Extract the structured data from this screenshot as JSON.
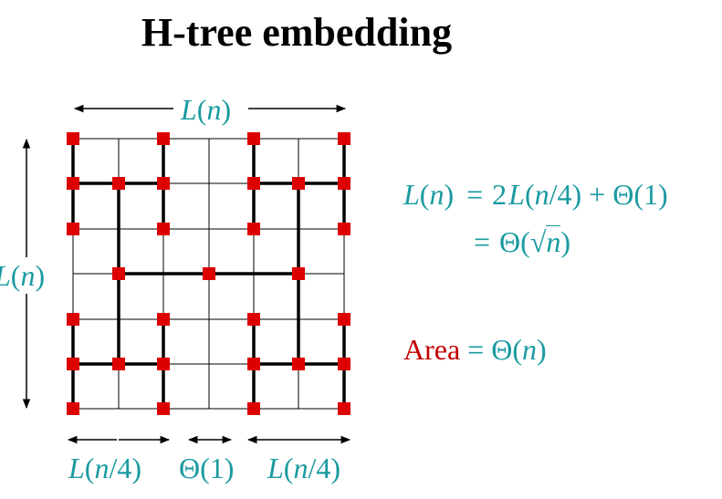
{
  "title": "H-tree embedding",
  "labels": {
    "top_width": [
      "L",
      "(",
      "n",
      ")"
    ],
    "left_height": [
      "L",
      "(",
      "n",
      ")"
    ],
    "bottom_left": [
      "L",
      "(",
      "n",
      "/4)"
    ],
    "bottom_mid": "Θ(1)",
    "bottom_right": [
      "L",
      "(",
      "n",
      "/4)"
    ]
  },
  "equations": {
    "line1": {
      "lhs_var": "L",
      "lhs_paren_open": "(",
      "lhs_arg": "n",
      "lhs_paren_close": ")",
      "eq": "=",
      "rhs_coef": "2",
      "rhs_var": "L",
      "rhs_arg_open": "(",
      "rhs_arg": "n",
      "rhs_arg_rest": "/4) + Θ(1)"
    },
    "line2": {
      "eq": "=",
      "prefix": "Θ(",
      "sqrt": "√",
      "arg": "n",
      "suffix": ")"
    },
    "area": {
      "label": "Area",
      "eq": "=",
      "prefix": "Θ(",
      "arg": "n",
      "suffix": ")"
    }
  },
  "colors": {
    "teal": "#1a9aa0",
    "red": "#c00000",
    "node": "#dd0000",
    "grid": "#000000"
  }
}
